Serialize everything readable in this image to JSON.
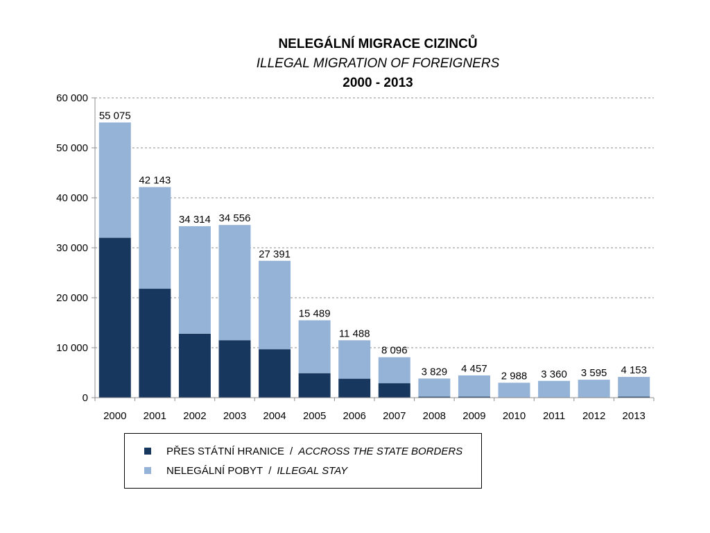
{
  "chart_data": {
    "type": "bar",
    "stacked": true,
    "title": "NELEGÁLNÍ MIGRACE CIZINCŮ",
    "subtitle": "ILLEGAL MIGRATION OF FOREIGNERS",
    "period": "2000 - 2013",
    "categories": [
      "2000",
      "2001",
      "2002",
      "2003",
      "2004",
      "2005",
      "2006",
      "2007",
      "2008",
      "2009",
      "2010",
      "2011",
      "2012",
      "2013"
    ],
    "series": [
      {
        "name": "PŘES STÁTNÍ HRANICE",
        "name_en": "ACCROSS  THE STATE BORDERS",
        "color": "#17375e",
        "values": [
          32000,
          21800,
          12800,
          11500,
          9700,
          4900,
          3800,
          2900,
          200,
          200,
          100,
          100,
          100,
          200
        ]
      },
      {
        "name": "NELEGÁLNÍ POBYT",
        "name_en": "ILLEGAL STAY",
        "color": "#95b3d7",
        "values": [
          23075,
          20343,
          21514,
          23056,
          17691,
          10589,
          7688,
          5196,
          3629,
          4257,
          2888,
          3260,
          3495,
          3953
        ]
      }
    ],
    "totals": [
      55075,
      42143,
      34314,
      34556,
      27391,
      15489,
      11488,
      8096,
      3829,
      4457,
      2988,
      3360,
      3595,
      4153
    ],
    "total_labels": [
      "55 075",
      "42 143",
      "34 314",
      "34 556",
      "27 391",
      "15 489",
      "11 488",
      "8 096",
      "3 829",
      "4 457",
      "2 988",
      "3 360",
      "3 595",
      "4 153"
    ],
    "ylim": [
      0,
      60000
    ],
    "yticks": [
      0,
      10000,
      20000,
      30000,
      40000,
      50000,
      60000
    ],
    "ytick_labels": [
      "0",
      "10 000",
      "20 000",
      "30 000",
      "40 000",
      "50 000",
      "60 000"
    ],
    "grid": true,
    "legend_position": "bottom",
    "legend": {
      "separator": "/",
      "items": [
        {
          "label": "PŘES STÁTNÍ HRANICE",
          "label_en": "ACCROSS  THE STATE BORDERS"
        },
        {
          "label": "NELEGÁLNÍ POBYT",
          "label_en": "ILLEGAL STAY"
        }
      ]
    }
  }
}
